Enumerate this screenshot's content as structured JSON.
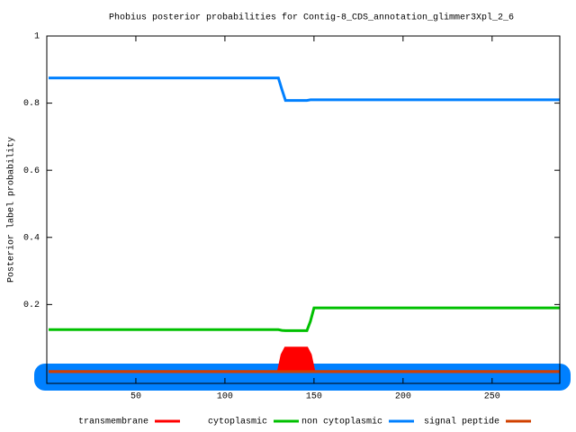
{
  "chart_data": {
    "type": "line",
    "title": "Phobius posterior probabilities for Contig-8_CDS_annotation_glimmer3Xpl_2_6",
    "y_label": "Posterior label probability",
    "x": [
      1,
      130,
      132,
      134,
      146,
      148,
      150,
      288
    ],
    "series": [
      {
        "name": "transmembrane",
        "color": "#ff0000",
        "fill": true,
        "values": [
          0,
          0,
          0.05,
          0.07,
          0.07,
          0.05,
          0,
          0
        ]
      },
      {
        "name": "cytoplasmic",
        "color": "#00c000",
        "values": [
          0.125,
          0.125,
          0.123,
          0.122,
          0.122,
          0.15,
          0.19,
          0.19
        ]
      },
      {
        "name": "non cytoplasmic",
        "color": "#0080ff",
        "values": [
          0.875,
          0.875,
          0.84,
          0.808,
          0.808,
          0.81,
          0.81,
          0.81
        ]
      },
      {
        "name": "signal peptide",
        "color": "#d04000",
        "values": [
          0,
          0,
          0,
          0,
          0,
          0,
          0,
          0
        ]
      }
    ],
    "xlim": [
      0,
      288
    ],
    "ylim": [
      -0.035,
      1
    ],
    "xticks": [
      50,
      100,
      150,
      200,
      250
    ],
    "yticks": [
      0.2,
      0.4,
      0.6,
      0.8,
      1
    ]
  }
}
